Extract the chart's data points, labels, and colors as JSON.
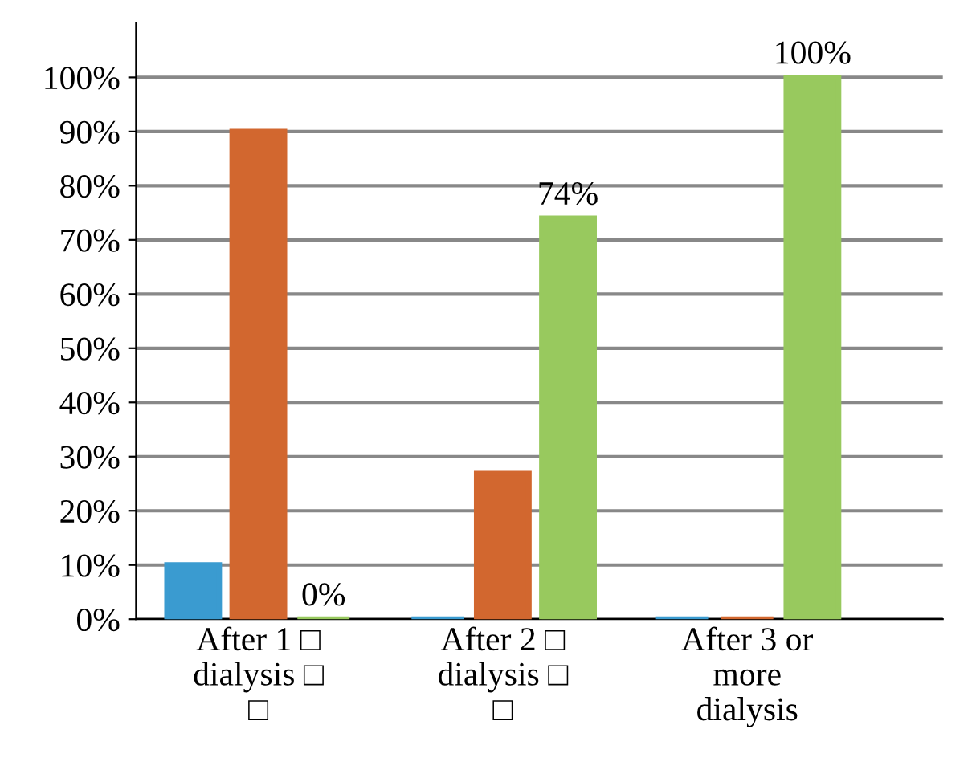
{
  "chart_data": {
    "type": "bar",
    "categories": [
      "After 1 □\ndialysis □\n□",
      "After 2 □\ndialysis □\n□",
      "After 3 or\nmore\ndialysis"
    ],
    "series": [
      {
        "color": "#3a9bd0",
        "values": [
          10,
          0,
          0
        ]
      },
      {
        "color": "#d2672f",
        "values": [
          90,
          27,
          0
        ]
      },
      {
        "color": "#98c95e",
        "values": [
          0,
          74,
          100
        ],
        "value_labels": [
          "0%",
          "74%",
          "100%"
        ]
      }
    ],
    "ylim": [
      0,
      110
    ],
    "yticks": [
      {
        "value": 0,
        "label": "0%"
      },
      {
        "value": 10,
        "label": "10%"
      },
      {
        "value": 20,
        "label": "20%"
      },
      {
        "value": 30,
        "label": "30%"
      },
      {
        "value": 40,
        "label": "40%"
      },
      {
        "value": 50,
        "label": "50%"
      },
      {
        "value": 60,
        "label": "60%"
      },
      {
        "value": 70,
        "label": "70%"
      },
      {
        "value": 80,
        "label": "80%"
      },
      {
        "value": 90,
        "label": "90%"
      },
      {
        "value": 100,
        "label": "100%"
      }
    ],
    "grid": "y",
    "legend": false
  }
}
